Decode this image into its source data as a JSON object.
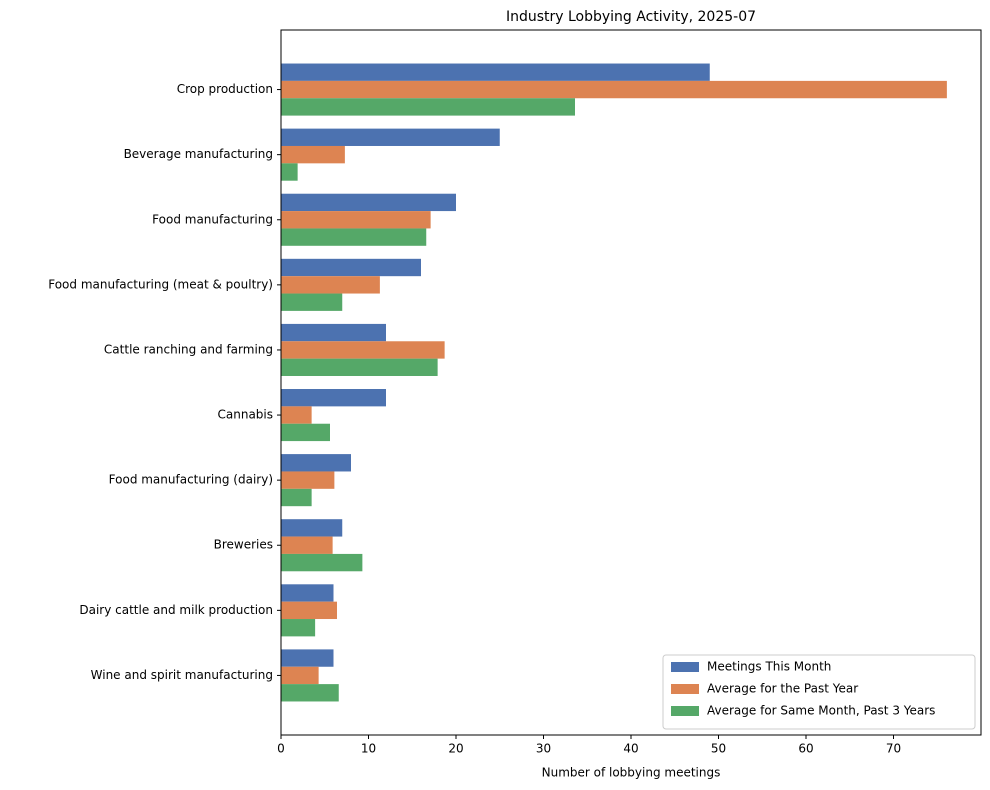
{
  "chart_data": {
    "type": "barh",
    "title": "Industry Lobbying Activity, 2025-07",
    "x_label": "Number of lobbying meetings",
    "categories": [
      "Crop production",
      "Beverage manufacturing",
      "Food manufacturing",
      "Food manufacturing (meat & poultry)",
      "Cattle ranching and farming",
      "Cannabis",
      "Food manufacturing (dairy)",
      "Breweries",
      "Dairy cattle and milk production",
      "Wine and spirit manufacturing"
    ],
    "series": [
      {
        "name": "Meetings This Month",
        "color": "#4c72b0",
        "values": [
          49,
          25,
          20,
          16,
          12,
          12,
          8,
          7,
          6,
          6
        ]
      },
      {
        "name": "Average for the Past Year",
        "color": "#dd8452",
        "values": [
          76.1,
          7.3,
          17.1,
          11.3,
          18.7,
          3.5,
          6.1,
          5.9,
          6.4,
          4.3
        ]
      },
      {
        "name": "Average for Same Month, Past 3 Years",
        "color": "#55a868",
        "values": [
          33.6,
          1.9,
          16.6,
          7.0,
          17.9,
          5.6,
          3.5,
          9.3,
          3.9,
          6.6
        ]
      }
    ],
    "xlim": [
      0,
      80
    ],
    "xticks": [
      0,
      10,
      20,
      30,
      40,
      50,
      60,
      70
    ],
    "legend": "lower right"
  }
}
